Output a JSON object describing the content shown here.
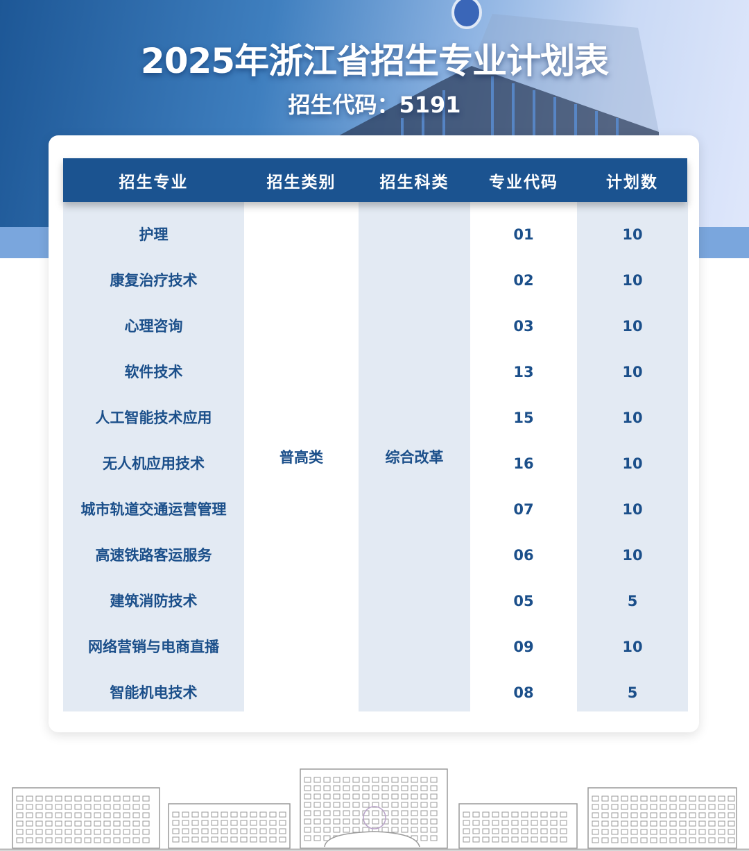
{
  "header": {
    "title": "2025年浙江省招生专业计划表",
    "subtitle": "招生代码：5191"
  },
  "table": {
    "columns": [
      "招生专业",
      "招生类别",
      "招生科类",
      "专业代码",
      "计划数"
    ],
    "category": "普高类",
    "subject_type": "综合改革",
    "rows": [
      {
        "major": "护理",
        "code": "01",
        "plan": "10"
      },
      {
        "major": "康复治疗技术",
        "code": "02",
        "plan": "10"
      },
      {
        "major": "心理咨询",
        "code": "03",
        "plan": "10"
      },
      {
        "major": "软件技术",
        "code": "13",
        "plan": "10"
      },
      {
        "major": "人工智能技术应用",
        "code": "15",
        "plan": "10"
      },
      {
        "major": "无人机应用技术",
        "code": "16",
        "plan": "10"
      },
      {
        "major": "城市轨道交通运营管理",
        "code": "07",
        "plan": "10"
      },
      {
        "major": "高速铁路客运服务",
        "code": "06",
        "plan": "10"
      },
      {
        "major": "建筑消防技术",
        "code": "05",
        "plan": "5"
      },
      {
        "major": "网络营销与电商直播",
        "code": "09",
        "plan": "10"
      },
      {
        "major": "智能机电技术",
        "code": "08",
        "plan": "5"
      }
    ]
  },
  "colors": {
    "header_blue": "#1b5390",
    "text_blue": "#1b4f8a",
    "shade": "#e3eaf3"
  }
}
